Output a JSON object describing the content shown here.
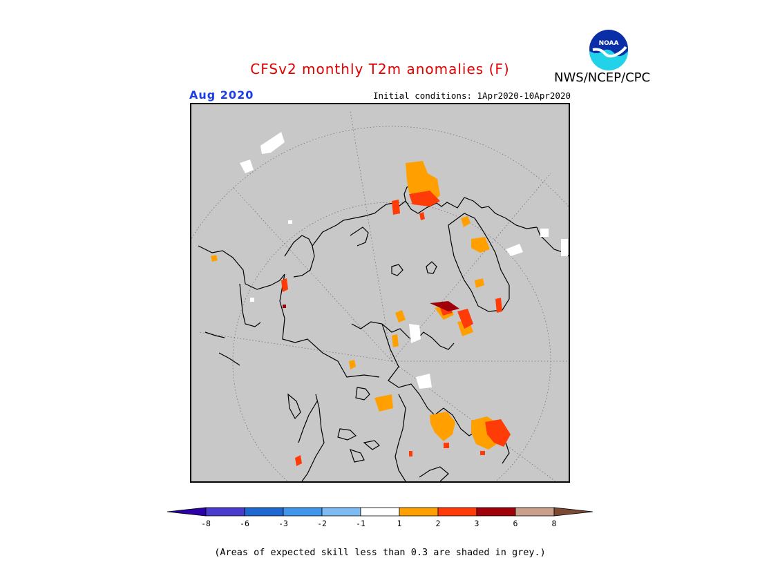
{
  "header": {
    "title": "CFSv2 monthly T2m anomalies (F)",
    "agency": "NWS/NCEP/CPC",
    "logo_text": "NOAA",
    "month": "Aug 2020",
    "initial_conditions": "Initial conditions: 1Apr2020-10Apr2020"
  },
  "map": {
    "projection": "north polar stereographic",
    "background_color": "#c8c8c8",
    "coastline_color": "#000000",
    "graticule_style": "dotted"
  },
  "legend": {
    "bins": [
      {
        "color": "#2b00a6"
      },
      {
        "color": "#4a3acd"
      },
      {
        "color": "#1f68d2"
      },
      {
        "color": "#3f96ea"
      },
      {
        "color": "#7dbbf2"
      },
      {
        "color": "#ffffff"
      },
      {
        "color": "#ffa000"
      },
      {
        "color": "#ff3c08"
      },
      {
        "color": "#a0000a"
      },
      {
        "color": "#c8a08c"
      },
      {
        "color": "#7a4a32"
      }
    ],
    "tick_labels": [
      "-8",
      "-6",
      "-3",
      "-2",
      "-1",
      "1",
      "2",
      "3",
      "6",
      "8"
    ]
  },
  "footnote": "(Areas of expected skill less than 0.3 are shaded in grey.)"
}
